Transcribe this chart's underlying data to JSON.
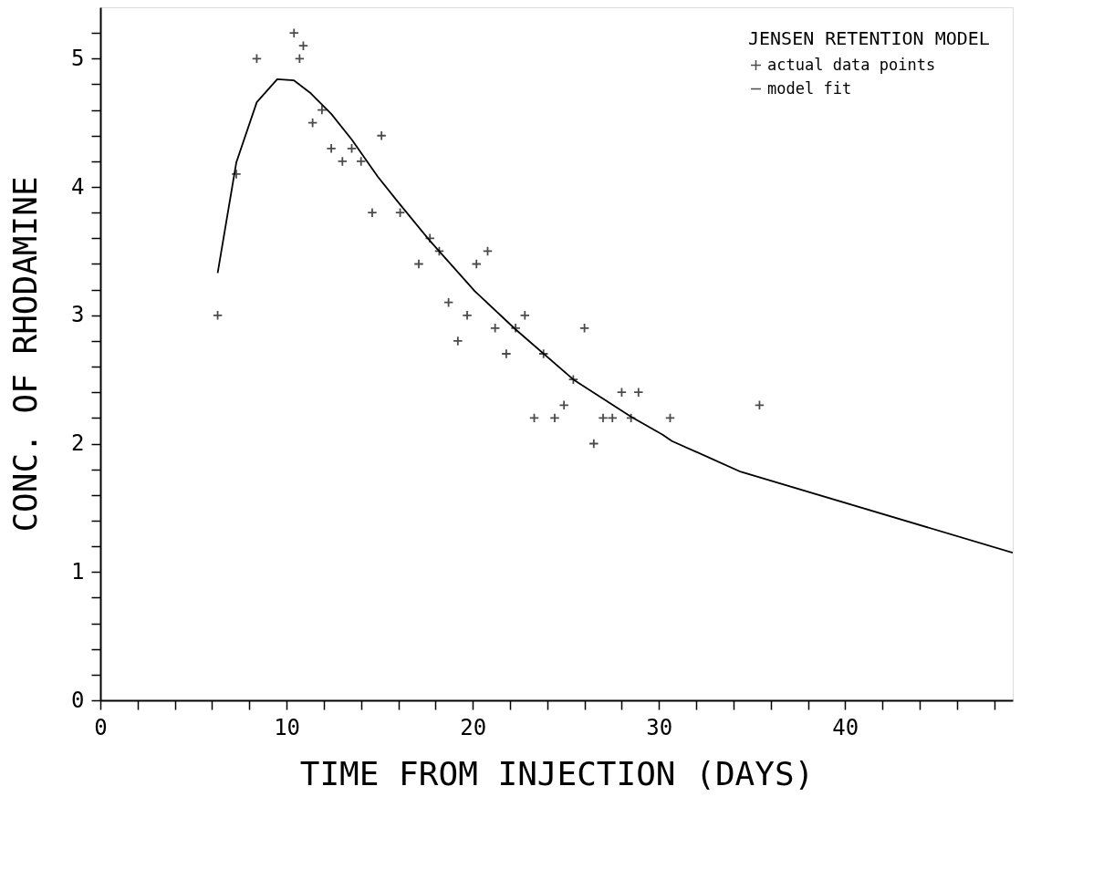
{
  "chart_data": {
    "type": "scatter",
    "xlabel": "TIME FROM INJECTION (DAYS)",
    "ylabel": "CONC. OF RHODAMINE",
    "legend_title": "JENSEN RETENTION MODEL",
    "legend": "top right",
    "grid": false,
    "xlim": [
      0,
      49
    ],
    "ylim": [
      0,
      5.4
    ],
    "xticks": [
      0,
      {
        "value": 2,
        "label": null
      },
      {
        "value": 4,
        "label": null
      },
      {
        "value": 6,
        "label": null
      },
      {
        "value": 8,
        "label": null
      },
      10,
      {
        "value": 12,
        "label": null
      },
      {
        "value": 14,
        "label": null
      },
      {
        "value": 16,
        "label": null
      },
      {
        "value": 18,
        "label": null
      },
      20,
      {
        "value": 22,
        "label": null
      },
      {
        "value": 24,
        "label": null
      },
      {
        "value": 26,
        "label": null
      },
      {
        "value": 28,
        "label": null
      },
      30,
      {
        "value": 32,
        "label": null
      },
      {
        "value": 34,
        "label": null
      },
      {
        "value": 36,
        "label": null
      },
      {
        "value": 38,
        "label": null
      },
      40,
      {
        "value": 42,
        "label": null
      },
      {
        "value": 44,
        "label": null
      },
      {
        "value": 46,
        "label": null
      },
      {
        "value": 48,
        "label": null
      }
    ],
    "yticks": [
      0,
      {
        "value": 0.2,
        "label": null
      },
      {
        "value": 0.4,
        "label": null
      },
      {
        "value": 0.6,
        "label": null
      },
      {
        "value": 0.8,
        "label": null
      },
      1,
      {
        "value": 1.2,
        "label": null
      },
      {
        "value": 1.4,
        "label": null
      },
      {
        "value": 1.6,
        "label": null
      },
      {
        "value": 1.8,
        "label": null
      },
      2,
      {
        "value": 2.2,
        "label": null
      },
      {
        "value": 2.4,
        "label": null
      },
      {
        "value": 2.6,
        "label": null
      },
      {
        "value": 2.8,
        "label": null
      },
      3,
      {
        "value": 3.2,
        "label": null
      },
      {
        "value": 3.4,
        "label": null
      },
      {
        "value": 3.6,
        "label": null
      },
      {
        "value": 3.8,
        "label": null
      },
      4,
      {
        "value": 4.2,
        "label": null
      },
      {
        "value": 4.4,
        "label": null
      },
      {
        "value": 4.6,
        "label": null
      },
      {
        "value": 4.8,
        "label": null
      },
      5,
      {
        "value": 5.2,
        "label": null
      }
    ],
    "series": [
      {
        "name": "actual data points",
        "marker": "cross",
        "color": "#000000",
        "x": [
          6.3,
          7.3,
          8.4,
          10.4,
          10.7,
          10.9,
          11.4,
          11.9,
          12.4,
          13.0,
          13.5,
          14.0,
          14.6,
          15.1,
          16.1,
          17.1,
          17.7,
          18.2,
          18.7,
          19.2,
          19.7,
          20.2,
          20.8,
          21.2,
          21.8,
          22.3,
          22.8,
          23.3,
          23.8,
          24.4,
          24.9,
          25.4,
          26.0,
          26.5,
          27.0,
          27.5,
          28.0,
          28.5,
          28.9,
          30.6,
          35.4
        ],
        "values": [
          3.0,
          4.1,
          5.0,
          5.2,
          5.0,
          5.1,
          4.5,
          4.6,
          4.3,
          4.2,
          4.3,
          4.2,
          3.8,
          4.4,
          3.8,
          3.4,
          3.6,
          3.5,
          3.1,
          2.8,
          3.0,
          3.4,
          3.5,
          2.9,
          2.7,
          2.9,
          3.0,
          2.2,
          2.7,
          2.2,
          2.3,
          2.5,
          2.9,
          2.0,
          2.2,
          2.2,
          2.4,
          2.2,
          2.4,
          2.2,
          2.3
        ]
      },
      {
        "name": "model fit",
        "type": "line",
        "marker": "none",
        "color": "#000000",
        "x": [
          6.3,
          7.3,
          8.4,
          9.5,
          10.4,
          11.3,
          12.4,
          13.5,
          14.9,
          16.0,
          17.7,
          20.1,
          22.3,
          25.4,
          28.5,
          30.2,
          30.7,
          34.4,
          49
        ],
        "values": [
          3.33,
          4.19,
          4.66,
          4.84,
          4.83,
          4.73,
          4.57,
          4.37,
          4.08,
          3.88,
          3.58,
          3.19,
          2.89,
          2.5,
          2.21,
          2.07,
          2.02,
          1.78,
          1.15
        ]
      }
    ]
  }
}
